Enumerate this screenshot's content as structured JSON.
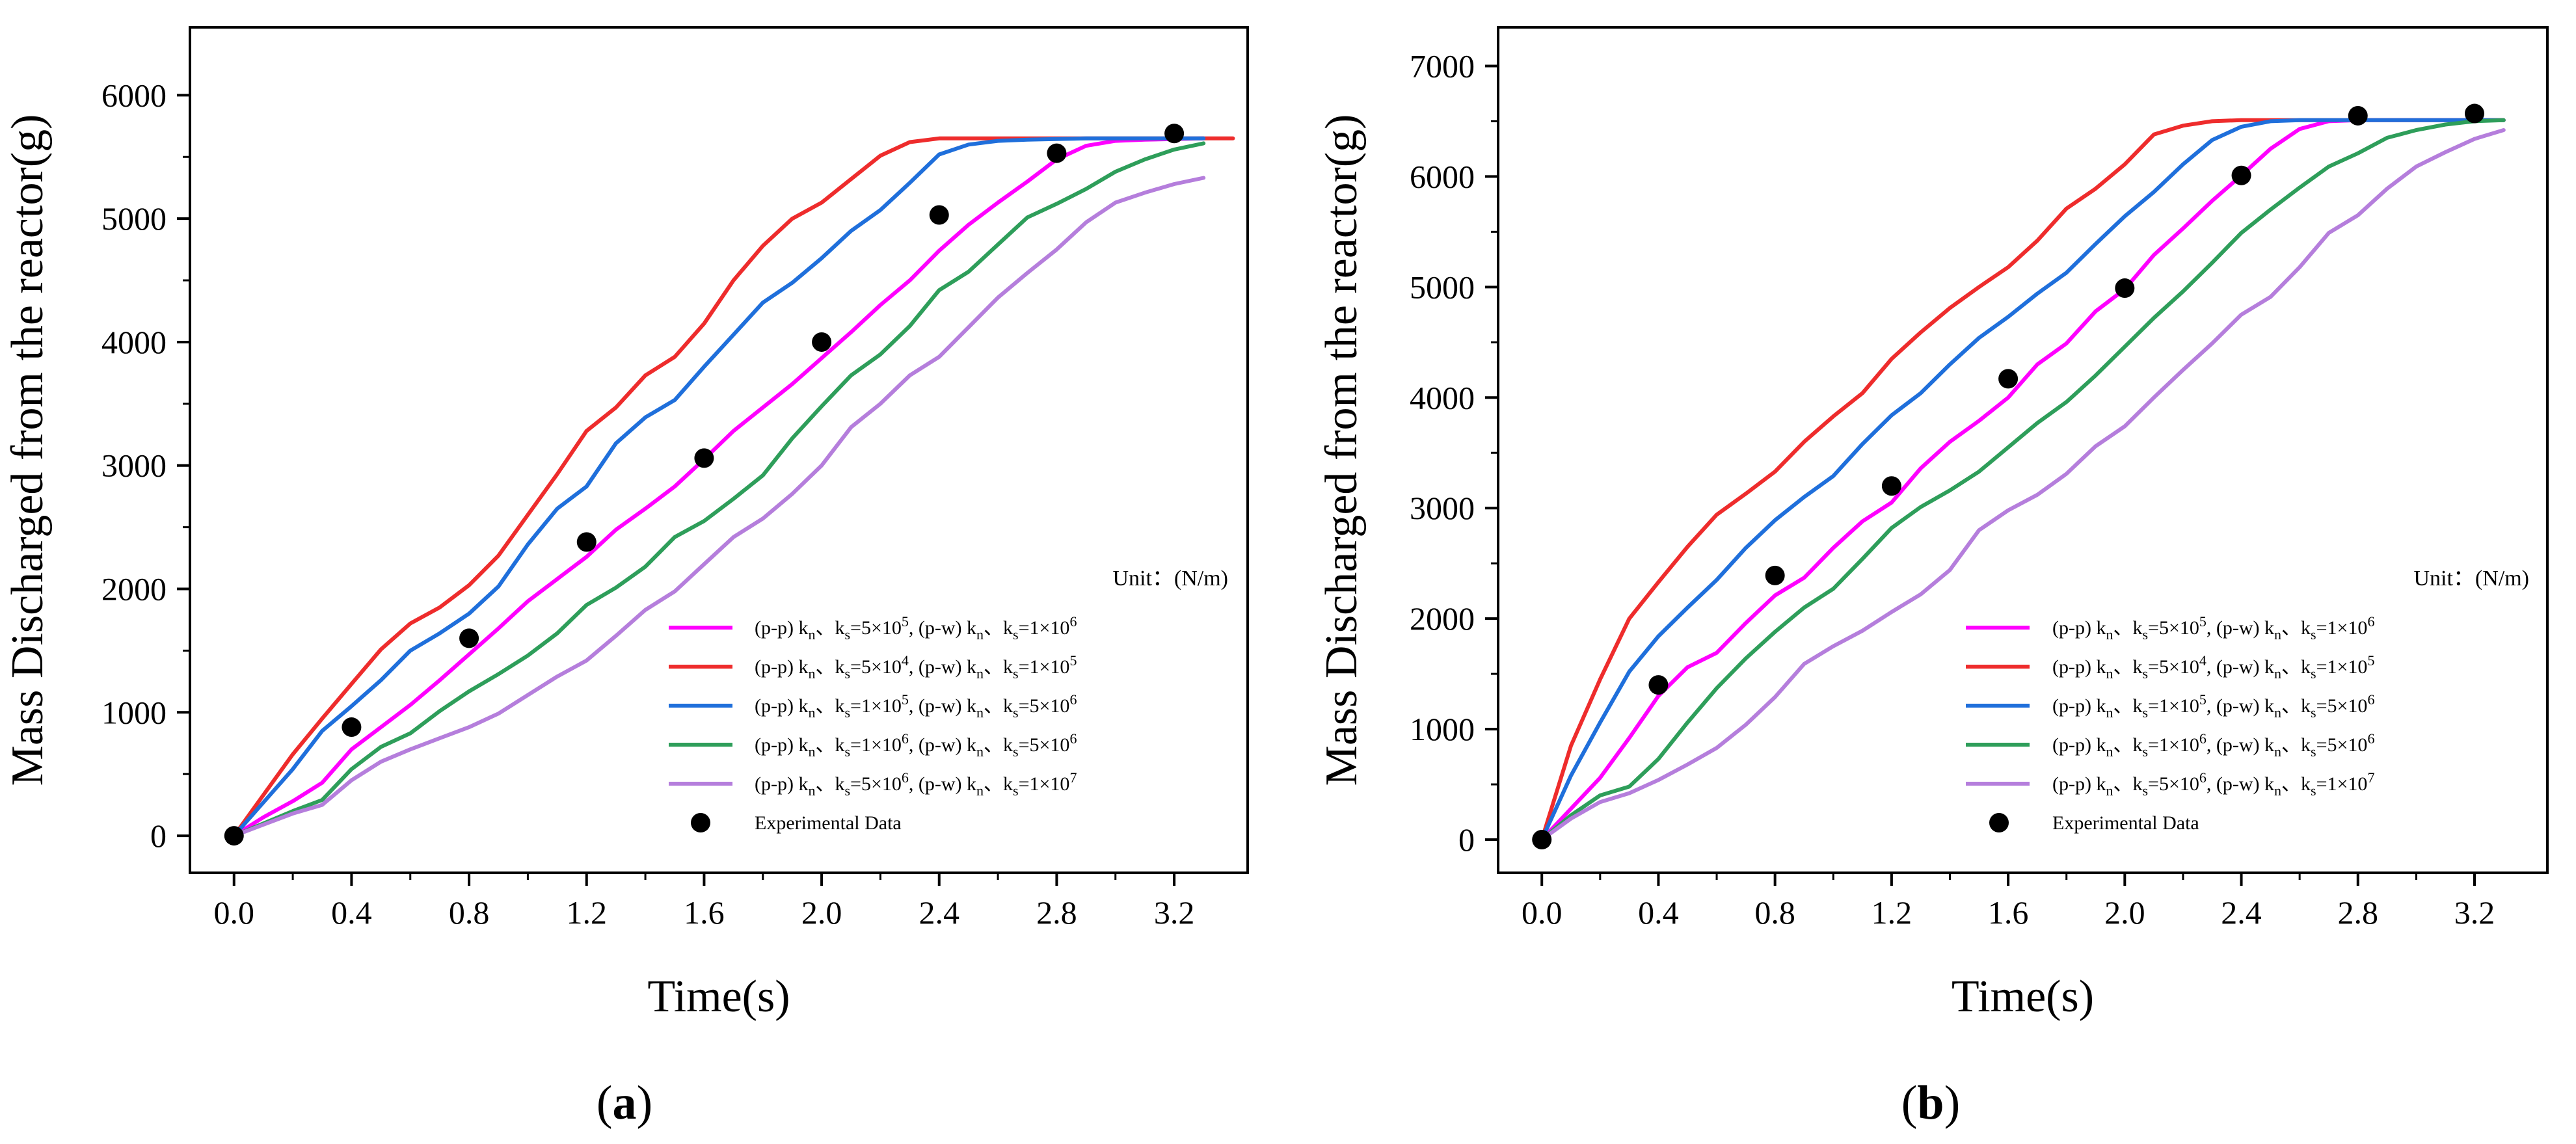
{
  "chart_data": [
    {
      "type": "line",
      "panel_label": "(a)",
      "panel_letter": "a",
      "xlabel": "Time(s)",
      "ylabel": "Mass Discharged from the reactor(g)",
      "xlim": [
        -0.15,
        3.45
      ],
      "ylim": [
        -300,
        6550
      ],
      "xticks": [
        0.0,
        0.4,
        0.8,
        1.2,
        1.6,
        2.0,
        2.4,
        2.8,
        3.2
      ],
      "xtick_labels": [
        "0.0",
        "0.4",
        "0.8",
        "1.2",
        "1.6",
        "2.0",
        "2.4",
        "2.8",
        "3.2"
      ],
      "yticks": [
        0,
        1000,
        2000,
        3000,
        4000,
        5000,
        6000
      ],
      "ytick_labels": [
        "0",
        "1000",
        "2000",
        "3000",
        "4000",
        "5000",
        "6000"
      ],
      "legend_title": "Unit：(N/m)",
      "legend_position": "bottom-right",
      "series": [
        {
          "name": "(p-p) kn、ks=5×10⁵,  (p-w) kn、ks=1×10⁶",
          "pp": "5",
          "ppe": "5",
          "pw": "1",
          "pwe": "6",
          "color": "#ff00ff",
          "x": [
            0,
            0.1,
            0.2,
            0.3,
            0.4,
            0.5,
            0.6,
            0.7,
            0.8,
            0.9,
            1.0,
            1.1,
            1.2,
            1.3,
            1.4,
            1.5,
            1.6,
            1.7,
            1.8,
            1.9,
            2.0,
            2.1,
            2.2,
            2.3,
            2.4,
            2.5,
            2.6,
            2.7,
            2.8,
            2.9,
            3.0,
            3.1,
            3.2,
            3.3
          ],
          "y": [
            0,
            150,
            280,
            430,
            700,
            880,
            1060,
            1260,
            1470,
            1680,
            1900,
            2080,
            2260,
            2480,
            2650,
            2830,
            3050,
            3280,
            3470,
            3660,
            3870,
            4080,
            4300,
            4500,
            4740,
            4950,
            5130,
            5300,
            5480,
            5590,
            5630,
            5640,
            5645,
            5650
          ]
        },
        {
          "name": "(p-p) kn、ks=5×10⁴,  (p-w) kn、ks=1×10⁵",
          "pp": "5",
          "ppe": "4",
          "pw": "1",
          "pwe": "5",
          "color": "#ee2c2c",
          "x": [
            0,
            0.1,
            0.2,
            0.3,
            0.4,
            0.5,
            0.6,
            0.7,
            0.8,
            0.9,
            1.0,
            1.1,
            1.2,
            1.3,
            1.4,
            1.5,
            1.6,
            1.7,
            1.8,
            1.9,
            2.0,
            2.1,
            2.2,
            2.3,
            2.4,
            2.5,
            2.6,
            2.7,
            2.8,
            2.9,
            3.0,
            3.1,
            3.2,
            3.3,
            3.4
          ],
          "y": [
            0,
            330,
            660,
            950,
            1230,
            1510,
            1720,
            1850,
            2030,
            2270,
            2600,
            2930,
            3280,
            3470,
            3730,
            3880,
            4150,
            4500,
            4780,
            5000,
            5130,
            5320,
            5510,
            5620,
            5650,
            5650,
            5650,
            5650,
            5650,
            5650,
            5650,
            5650,
            5650,
            5650,
            5650
          ]
        },
        {
          "name": "(p-p) kn、ks=1×10⁵,  (p-w) kn、ks=5×10⁶",
          "pp": "1",
          "ppe": "5",
          "pw": "5",
          "pwe": "6",
          "color": "#1f6fdb",
          "x": [
            0,
            0.1,
            0.2,
            0.3,
            0.4,
            0.5,
            0.6,
            0.7,
            0.8,
            0.9,
            1.0,
            1.1,
            1.2,
            1.3,
            1.4,
            1.5,
            1.6,
            1.7,
            1.8,
            1.9,
            2.0,
            2.1,
            2.2,
            2.3,
            2.4,
            2.5,
            2.6,
            2.7,
            2.8,
            2.9,
            3.0,
            3.1,
            3.2,
            3.3
          ],
          "y": [
            0,
            270,
            540,
            850,
            1050,
            1260,
            1500,
            1640,
            1800,
            2020,
            2360,
            2650,
            2830,
            3180,
            3390,
            3530,
            3800,
            4060,
            4320,
            4480,
            4680,
            4900,
            5070,
            5290,
            5520,
            5600,
            5630,
            5640,
            5645,
            5650,
            5650,
            5650,
            5650,
            5650
          ]
        },
        {
          "name": "(p-p) kn、ks=1×10⁶,  (p-w) kn、ks=5×10⁶",
          "pp": "1",
          "ppe": "6",
          "pw": "5",
          "pwe": "6",
          "color": "#2e9e5a",
          "x": [
            0,
            0.1,
            0.2,
            0.3,
            0.4,
            0.5,
            0.6,
            0.7,
            0.8,
            0.9,
            1.0,
            1.1,
            1.2,
            1.3,
            1.4,
            1.5,
            1.6,
            1.7,
            1.8,
            1.9,
            2.0,
            2.1,
            2.2,
            2.3,
            2.4,
            2.5,
            2.6,
            2.7,
            2.8,
            2.9,
            3.0,
            3.1,
            3.2,
            3.3
          ],
          "y": [
            0,
            100,
            200,
            290,
            540,
            720,
            830,
            1010,
            1170,
            1310,
            1460,
            1640,
            1870,
            2010,
            2180,
            2420,
            2550,
            2730,
            2920,
            3220,
            3480,
            3730,
            3900,
            4130,
            4420,
            4570,
            4790,
            5010,
            5120,
            5240,
            5380,
            5480,
            5560,
            5610
          ]
        },
        {
          "name": "(p-p) kn、ks=5×10⁶,  (p-w) kn、ks=1×10⁷",
          "pp": "5",
          "ppe": "6",
          "pw": "1",
          "pwe": "7",
          "color": "#b57edc",
          "x": [
            0,
            0.1,
            0.2,
            0.3,
            0.4,
            0.5,
            0.6,
            0.7,
            0.8,
            0.9,
            1.0,
            1.1,
            1.2,
            1.3,
            1.4,
            1.5,
            1.6,
            1.7,
            1.8,
            1.9,
            2.0,
            2.1,
            2.2,
            2.3,
            2.4,
            2.5,
            2.6,
            2.7,
            2.8,
            2.9,
            3.0,
            3.1,
            3.2,
            3.3
          ],
          "y": [
            0,
            90,
            180,
            250,
            450,
            600,
            700,
            790,
            880,
            990,
            1140,
            1290,
            1420,
            1620,
            1830,
            1980,
            2200,
            2420,
            2570,
            2770,
            3000,
            3310,
            3500,
            3730,
            3880,
            4120,
            4360,
            4560,
            4750,
            4970,
            5130,
            5210,
            5280,
            5330
          ]
        }
      ],
      "experimental": {
        "name": "Experimental Data",
        "x": [
          0.0,
          0.4,
          0.8,
          1.2,
          1.6,
          2.0,
          2.4,
          2.8,
          3.2
        ],
        "y": [
          0,
          880,
          1600,
          2380,
          3060,
          4000,
          5030,
          5530,
          5690
        ]
      }
    },
    {
      "type": "line",
      "panel_label": "(b)",
      "panel_letter": "b",
      "xlabel": "Time(s)",
      "ylabel": "Mass Discharged from the reactor(g)",
      "xlim": [
        -0.15,
        3.45
      ],
      "ylim": [
        -300,
        7350
      ],
      "xticks": [
        0.0,
        0.4,
        0.8,
        1.2,
        1.6,
        2.0,
        2.4,
        2.8,
        3.2
      ],
      "xtick_labels": [
        "0.0",
        "0.4",
        "0.8",
        "1.2",
        "1.6",
        "2.0",
        "2.4",
        "2.8",
        "3.2"
      ],
      "yticks": [
        0,
        1000,
        2000,
        3000,
        4000,
        5000,
        6000,
        7000
      ],
      "ytick_labels": [
        "0",
        "1000",
        "2000",
        "3000",
        "4000",
        "5000",
        "6000",
        "7000"
      ],
      "legend_title": "Unit：(N/m)",
      "legend_position": "bottom-right",
      "series": [
        {
          "name": "(p-p) kn、ks=5×10⁵,  (p-w) kn、ks=1×10⁶",
          "pp": "5",
          "ppe": "5",
          "pw": "1",
          "pwe": "6",
          "color": "#ff00ff",
          "x": [
            0,
            0.1,
            0.2,
            0.3,
            0.4,
            0.5,
            0.6,
            0.7,
            0.8,
            0.9,
            1.0,
            1.1,
            1.2,
            1.3,
            1.4,
            1.5,
            1.6,
            1.7,
            1.8,
            1.9,
            2.0,
            2.1,
            2.2,
            2.3,
            2.4,
            2.5,
            2.6,
            2.7,
            2.8,
            2.9,
            3.0,
            3.1,
            3.2,
            3.3
          ],
          "y": [
            0,
            280,
            560,
            920,
            1300,
            1560,
            1690,
            1960,
            2210,
            2370,
            2640,
            2880,
            3050,
            3360,
            3600,
            3790,
            4000,
            4300,
            4490,
            4780,
            4980,
            5290,
            5530,
            5780,
            6010,
            6250,
            6430,
            6500,
            6510,
            6510,
            6510,
            6510,
            6510,
            6510
          ]
        },
        {
          "name": "(p-p) kn、ks=5×10⁴,  (p-w) kn、ks=1×10⁵",
          "pp": "5",
          "ppe": "4",
          "pw": "1",
          "pwe": "5",
          "color": "#ee2c2c",
          "x": [
            0,
            0.1,
            0.2,
            0.3,
            0.4,
            0.5,
            0.6,
            0.7,
            0.8,
            0.9,
            1.0,
            1.1,
            1.2,
            1.3,
            1.4,
            1.5,
            1.6,
            1.7,
            1.8,
            1.9,
            2.0,
            2.1,
            2.2,
            2.3,
            2.4,
            2.5,
            2.6,
            2.7,
            2.8,
            2.9,
            3.0,
            3.1,
            3.2,
            3.3
          ],
          "y": [
            0,
            850,
            1450,
            2000,
            2330,
            2650,
            2940,
            3130,
            3330,
            3600,
            3830,
            4040,
            4350,
            4590,
            4810,
            5000,
            5180,
            5420,
            5710,
            5890,
            6110,
            6380,
            6460,
            6500,
            6510,
            6510,
            6510,
            6510,
            6510,
            6510,
            6510,
            6510,
            6510,
            6510
          ]
        },
        {
          "name": "(p-p) kn、ks=1×10⁵,  (p-w) kn、ks=5×10⁶",
          "pp": "1",
          "ppe": "5",
          "pw": "5",
          "pwe": "6",
          "color": "#1f6fdb",
          "x": [
            0,
            0.1,
            0.2,
            0.3,
            0.4,
            0.5,
            0.6,
            0.7,
            0.8,
            0.9,
            1.0,
            1.1,
            1.2,
            1.3,
            1.4,
            1.5,
            1.6,
            1.7,
            1.8,
            1.9,
            2.0,
            2.1,
            2.2,
            2.3,
            2.4,
            2.5,
            2.6,
            2.7,
            2.8,
            2.9,
            3.0,
            3.1,
            3.2,
            3.3
          ],
          "y": [
            0,
            580,
            1060,
            1520,
            1840,
            2100,
            2350,
            2640,
            2890,
            3100,
            3290,
            3580,
            3840,
            4040,
            4300,
            4540,
            4730,
            4940,
            5130,
            5390,
            5640,
            5860,
            6110,
            6330,
            6450,
            6500,
            6510,
            6510,
            6510,
            6510,
            6510,
            6510,
            6510,
            6510
          ]
        },
        {
          "name": "(p-p) kn、ks=1×10⁶,  (p-w) kn、ks=5×10⁶",
          "pp": "1",
          "ppe": "6",
          "pw": "5",
          "pwe": "6",
          "color": "#2e9e5a",
          "x": [
            0,
            0.1,
            0.2,
            0.3,
            0.4,
            0.5,
            0.6,
            0.7,
            0.8,
            0.9,
            1.0,
            1.1,
            1.2,
            1.3,
            1.4,
            1.5,
            1.6,
            1.7,
            1.8,
            1.9,
            2.0,
            2.1,
            2.2,
            2.3,
            2.4,
            2.5,
            2.6,
            2.7,
            2.8,
            2.9,
            3.0,
            3.1,
            3.2,
            3.3
          ],
          "y": [
            0,
            220,
            400,
            480,
            730,
            1060,
            1370,
            1640,
            1880,
            2100,
            2270,
            2540,
            2820,
            3010,
            3160,
            3330,
            3550,
            3770,
            3960,
            4200,
            4460,
            4720,
            4960,
            5220,
            5490,
            5700,
            5900,
            6090,
            6210,
            6350,
            6420,
            6470,
            6500,
            6510
          ]
        },
        {
          "name": "(p-p) kn、ks=5×10⁶,  (p-w) kn、ks=1×10⁷",
          "pp": "5",
          "ppe": "6",
          "pw": "1",
          "pwe": "7",
          "color": "#b57edc",
          "x": [
            0,
            0.1,
            0.2,
            0.3,
            0.4,
            0.5,
            0.6,
            0.7,
            0.8,
            0.9,
            1.0,
            1.1,
            1.2,
            1.3,
            1.4,
            1.5,
            1.6,
            1.7,
            1.8,
            1.9,
            2.0,
            2.1,
            2.2,
            2.3,
            2.4,
            2.5,
            2.6,
            2.7,
            2.8,
            2.9,
            3.0,
            3.1,
            3.2,
            3.3
          ],
          "y": [
            0,
            190,
            340,
            420,
            540,
            680,
            830,
            1040,
            1290,
            1590,
            1750,
            1890,
            2060,
            2220,
            2440,
            2800,
            2980,
            3120,
            3310,
            3560,
            3740,
            4000,
            4250,
            4490,
            4750,
            4910,
            5180,
            5490,
            5650,
            5890,
            6090,
            6220,
            6340,
            6420
          ]
        }
      ],
      "experimental": {
        "name": "Experimental Data",
        "x": [
          0.0,
          0.4,
          0.8,
          1.2,
          1.6,
          2.0,
          2.4,
          2.8,
          3.2
        ],
        "y": [
          0,
          1400,
          2390,
          3200,
          4170,
          4990,
          6010,
          6550,
          6570
        ]
      }
    }
  ]
}
